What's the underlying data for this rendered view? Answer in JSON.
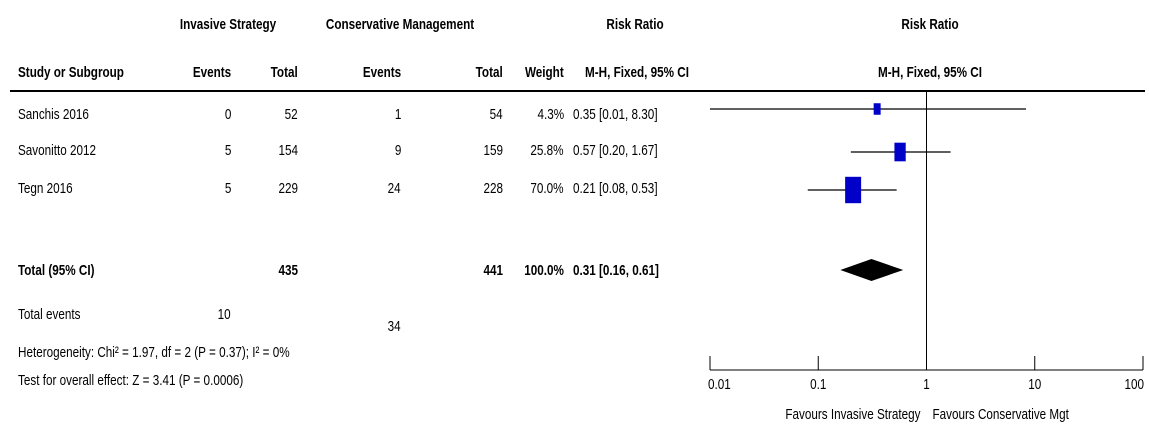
{
  "headers": {
    "group1": "Invasive Strategy",
    "group2": "Conservative Management",
    "rr_left_1": "Risk Ratio",
    "rr_right_1": "Risk Ratio",
    "study": "Study or Subgroup",
    "events1": "Events",
    "total1": "Total",
    "events2": "Events",
    "total2": "Total",
    "weight": "Weight",
    "rr_left_2": "M-H, Fixed, 95% CI",
    "rr_right_2": "M-H, Fixed, 95% CI"
  },
  "studies": [
    {
      "name": "Sanchis 2016",
      "events1": "0",
      "total1": "52",
      "events2": "1",
      "total2": "54",
      "weight": "4.3%",
      "ci": "0.35 [0.01, 8.30]"
    },
    {
      "name": "Savonitto 2012",
      "events1": "5",
      "total1": "154",
      "events2": "9",
      "total2": "159",
      "weight": "25.8%",
      "ci": "0.57 [0.20, 1.67]"
    },
    {
      "name": "Tegn 2016",
      "events1": "5",
      "total1": "229",
      "events2": "24",
      "total2": "228",
      "weight": "70.0%",
      "ci": "0.21 [0.08, 0.53]"
    }
  ],
  "total": {
    "label": "Total (95% CI)",
    "total1": "435",
    "total2": "441",
    "weight": "100.0%",
    "ci": "0.31 [0.16, 0.61]"
  },
  "total_events": {
    "label": "Total events",
    "events1": "10",
    "events2": "34"
  },
  "heterogeneity": "Heterogeneity: Chi² = 1.97, df = 2 (P = 0.37); I² = 0%",
  "overall_effect": "Test for overall effect: Z = 3.41 (P = 0.0006)",
  "axis": {
    "tick_labels": [
      "0.01",
      "0.1",
      "1",
      "10",
      "100"
    ],
    "favours_left": "Favours Invasive Strategy",
    "favours_right": "Favours Conservative Mgt"
  },
  "colors": {
    "study_marker": "#0000c8",
    "diamond": "#000000"
  },
  "chart_data": {
    "type": "forest",
    "scale": "log",
    "xlim": [
      0.01,
      100
    ],
    "ticks": [
      0.01,
      0.1,
      1,
      10,
      100
    ],
    "reference_line": 1,
    "studies": [
      {
        "name": "Sanchis 2016",
        "rr": 0.35,
        "lo": 0.01,
        "hi": 8.3,
        "weight": 4.3
      },
      {
        "name": "Savonitto 2012",
        "rr": 0.57,
        "lo": 0.2,
        "hi": 1.67,
        "weight": 25.8
      },
      {
        "name": "Tegn 2016",
        "rr": 0.21,
        "lo": 0.08,
        "hi": 0.53,
        "weight": 70.0
      }
    ],
    "pooled": {
      "rr": 0.31,
      "lo": 0.16,
      "hi": 0.61
    }
  }
}
